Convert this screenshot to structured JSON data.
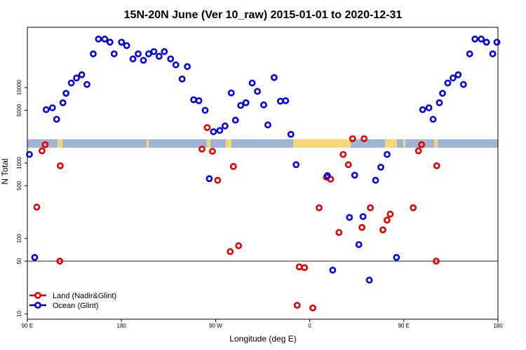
{
  "chart_data": {
    "type": "scatter",
    "title": "15N-20N June (Ver 10_raw)   2015-01-01 to 2020-12-31",
    "xlabel": "Longitude (deg E)",
    "ylabel": "N Total",
    "x_ticks": [
      {
        "value": 90,
        "label": "90 E"
      },
      {
        "value": 180,
        "label": "180"
      },
      {
        "value": 270,
        "label": "90 W"
      },
      {
        "value": 360,
        "label": "0"
      },
      {
        "value": 450,
        "label": "90 E"
      },
      {
        "value": 540,
        "label": "180"
      }
    ],
    "y_ticks": [
      10,
      50,
      100,
      500,
      1000,
      5000,
      10000
    ],
    "xlim": [
      90,
      540
    ],
    "ylim": [
      8.5,
      63000
    ],
    "y_scale": "log",
    "reference_line": 50,
    "legend_position": "bottom-left",
    "legend": [
      {
        "label": "Land (Nadir&Glint)",
        "color": "#e00000"
      },
      {
        "label": "Ocean (Glint)",
        "color": "#0000dd"
      }
    ],
    "colors": {
      "land": "#e00000",
      "ocean": "#0000dd",
      "map_sea": "#9fb5d8",
      "map_land": "#f5d77a"
    },
    "series": [
      {
        "name": "Land (Nadir&Glint)",
        "points": [
          {
            "x": 99.0,
            "y": 260
          },
          {
            "x": 104.0,
            "y": 1450
          },
          {
            "x": 107.0,
            "y": 1750
          },
          {
            "x": 121.0,
            "y": 50
          },
          {
            "x": 121.5,
            "y": 920
          },
          {
            "x": 257.0,
            "y": 1530
          },
          {
            "x": 262.0,
            "y": 2950
          },
          {
            "x": 267.0,
            "y": 1430
          },
          {
            "x": 272.0,
            "y": 590
          },
          {
            "x": 284.0,
            "y": 67
          },
          {
            "x": 287.0,
            "y": 900
          },
          {
            "x": 292.0,
            "y": 80
          },
          {
            "x": 348.0,
            "y": 13
          },
          {
            "x": 350.0,
            "y": 42
          },
          {
            "x": 355.0,
            "y": 41
          },
          {
            "x": 363.0,
            "y": 12
          },
          {
            "x": 369.0,
            "y": 255
          },
          {
            "x": 376.0,
            "y": 650
          },
          {
            "x": 380.0,
            "y": 610
          },
          {
            "x": 388.0,
            "y": 120
          },
          {
            "x": 392.0,
            "y": 1300
          },
          {
            "x": 397.0,
            "y": 950
          },
          {
            "x": 401.0,
            "y": 2100
          },
          {
            "x": 410.0,
            "y": 140
          },
          {
            "x": 412.0,
            "y": 2100
          },
          {
            "x": 418.0,
            "y": 255
          },
          {
            "x": 430.0,
            "y": 130
          },
          {
            "x": 434.0,
            "y": 175
          },
          {
            "x": 437.0,
            "y": 210
          },
          {
            "x": 459.0,
            "y": 255
          },
          {
            "x": 464.0,
            "y": 1450
          },
          {
            "x": 467.0,
            "y": 1750
          },
          {
            "x": 481.0,
            "y": 50
          },
          {
            "x": 481.5,
            "y": 920
          }
        ]
      },
      {
        "name": "Ocean (Glint)",
        "points": [
          {
            "x": 92.0,
            "y": 1300
          },
          {
            "x": 97.0,
            "y": 56
          },
          {
            "x": 108.0,
            "y": 5100
          },
          {
            "x": 114.0,
            "y": 5400
          },
          {
            "x": 118.0,
            "y": 3800
          },
          {
            "x": 124.0,
            "y": 6300
          },
          {
            "x": 127.0,
            "y": 8400
          },
          {
            "x": 132.0,
            "y": 11500
          },
          {
            "x": 137.0,
            "y": 13400
          },
          {
            "x": 142.0,
            "y": 14800
          },
          {
            "x": 147.0,
            "y": 11000
          },
          {
            "x": 153.0,
            "y": 28000
          },
          {
            "x": 158.0,
            "y": 44000
          },
          {
            "x": 164.0,
            "y": 44000
          },
          {
            "x": 169.0,
            "y": 40000
          },
          {
            "x": 173.0,
            "y": 28000
          },
          {
            "x": 180.0,
            "y": 40000
          },
          {
            "x": 185.0,
            "y": 36000
          },
          {
            "x": 191.0,
            "y": 24000
          },
          {
            "x": 196.0,
            "y": 28000
          },
          {
            "x": 201.0,
            "y": 23000
          },
          {
            "x": 206.0,
            "y": 28000
          },
          {
            "x": 211.0,
            "y": 30000
          },
          {
            "x": 216.0,
            "y": 26000
          },
          {
            "x": 221.0,
            "y": 30000
          },
          {
            "x": 227.0,
            "y": 24000
          },
          {
            "x": 232.0,
            "y": 20000
          },
          {
            "x": 238.0,
            "y": 13000
          },
          {
            "x": 243.0,
            "y": 19000
          },
          {
            "x": 249.0,
            "y": 6900
          },
          {
            "x": 254.0,
            "y": 6700
          },
          {
            "x": 260.0,
            "y": 5000
          },
          {
            "x": 264.0,
            "y": 620
          },
          {
            "x": 268.0,
            "y": 2600
          },
          {
            "x": 274.0,
            "y": 2700
          },
          {
            "x": 279.0,
            "y": 3100
          },
          {
            "x": 285.0,
            "y": 8500
          },
          {
            "x": 289.0,
            "y": 3700
          },
          {
            "x": 294.0,
            "y": 5800
          },
          {
            "x": 299.0,
            "y": 6300
          },
          {
            "x": 305.0,
            "y": 11500
          },
          {
            "x": 310.0,
            "y": 8900
          },
          {
            "x": 316.0,
            "y": 5900
          },
          {
            "x": 320.0,
            "y": 3200
          },
          {
            "x": 326.0,
            "y": 13600
          },
          {
            "x": 332.0,
            "y": 6600
          },
          {
            "x": 337.0,
            "y": 6700
          },
          {
            "x": 342.0,
            "y": 2400
          },
          {
            "x": 347.0,
            "y": 950
          },
          {
            "x": 377.0,
            "y": 680
          },
          {
            "x": 382.0,
            "y": 38
          },
          {
            "x": 398.0,
            "y": 190
          },
          {
            "x": 403.0,
            "y": 690
          },
          {
            "x": 407.0,
            "y": 83
          },
          {
            "x": 411.0,
            "y": 195
          },
          {
            "x": 417.0,
            "y": 28
          },
          {
            "x": 423.0,
            "y": 590
          },
          {
            "x": 428.0,
            "y": 880
          },
          {
            "x": 434.0,
            "y": 1300
          },
          {
            "x": 443.0,
            "y": 56
          },
          {
            "x": 468.0,
            "y": 5100
          },
          {
            "x": 474.0,
            "y": 5400
          },
          {
            "x": 478.0,
            "y": 3800
          },
          {
            "x": 484.0,
            "y": 6300
          },
          {
            "x": 487.0,
            "y": 8400
          },
          {
            "x": 492.0,
            "y": 11500
          },
          {
            "x": 497.0,
            "y": 13400
          },
          {
            "x": 502.0,
            "y": 14800
          },
          {
            "x": 507.0,
            "y": 11000
          },
          {
            "x": 513.0,
            "y": 28000
          },
          {
            "x": 518.0,
            "y": 44000
          },
          {
            "x": 524.0,
            "y": 44000
          },
          {
            "x": 529.0,
            "y": 40000
          },
          {
            "x": 535.0,
            "y": 28000
          },
          {
            "x": 539.0,
            "y": 40000
          }
        ]
      }
    ]
  }
}
